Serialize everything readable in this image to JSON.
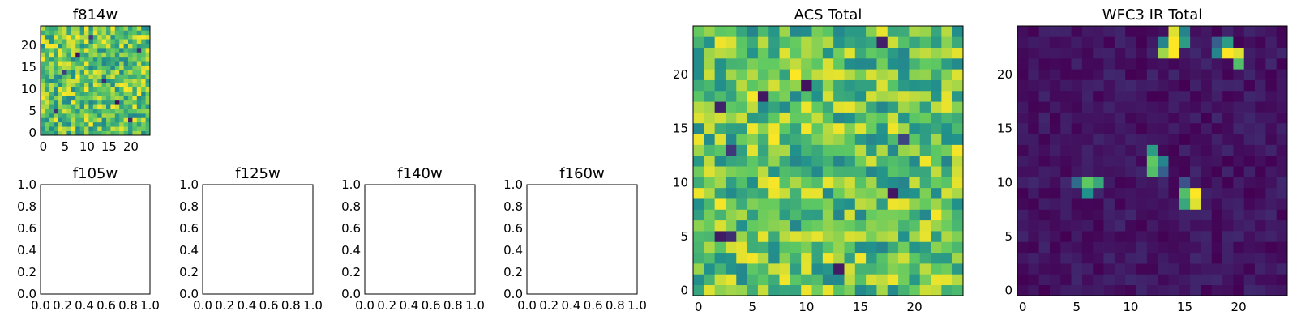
{
  "figure": {
    "background": "#ffffff",
    "colormap_name": "viridis",
    "colormap_stops": [
      "#440154",
      "#3b528b",
      "#21918c",
      "#5ec962",
      "#fde725"
    ]
  },
  "chart_data": [
    {
      "type": "heatmap",
      "title": "f814w",
      "grid_size": 25,
      "xlim": [
        -0.5,
        24.5
      ],
      "ylim": [
        -0.5,
        24.5
      ],
      "xticks": [
        0,
        5,
        10,
        15,
        20
      ],
      "yticks": [
        0,
        5,
        10,
        15,
        20
      ],
      "value_model": "noise",
      "value_range": [
        0.45,
        1.0
      ],
      "seed": 11,
      "low_value_cells": [
        [
          3,
          5
        ],
        [
          11,
          22
        ],
        [
          17,
          7
        ],
        [
          5,
          14
        ],
        [
          20,
          3
        ],
        [
          8,
          18
        ],
        [
          14,
          12
        ],
        [
          22,
          19
        ]
      ]
    },
    {
      "type": "table",
      "title": "f105w",
      "empty": true,
      "xlim": [
        0,
        1
      ],
      "ylim": [
        0,
        1
      ],
      "xticks": [
        "0.0",
        "0.2",
        "0.4",
        "0.6",
        "0.8",
        "1.0"
      ],
      "yticks": [
        "0.0",
        "0.2",
        "0.4",
        "0.6",
        "0.8",
        "1.0"
      ]
    },
    {
      "type": "table",
      "title": "f125w",
      "empty": true,
      "xlim": [
        0,
        1
      ],
      "ylim": [
        0,
        1
      ],
      "xticks": [
        "0.0",
        "0.2",
        "0.4",
        "0.6",
        "0.8",
        "1.0"
      ],
      "yticks": [
        "0.0",
        "0.2",
        "0.4",
        "0.6",
        "0.8",
        "1.0"
      ]
    },
    {
      "type": "table",
      "title": "f140w",
      "empty": true,
      "xlim": [
        0,
        1
      ],
      "ylim": [
        0,
        1
      ],
      "xticks": [
        "0.0",
        "0.2",
        "0.4",
        "0.6",
        "0.8",
        "1.0"
      ],
      "yticks": [
        "0.0",
        "0.2",
        "0.4",
        "0.6",
        "0.8",
        "1.0"
      ]
    },
    {
      "type": "table",
      "title": "f160w",
      "empty": true,
      "xlim": [
        0,
        1
      ],
      "ylim": [
        0,
        1
      ],
      "xticks": [
        "0.0",
        "0.2",
        "0.4",
        "0.6",
        "0.8",
        "1.0"
      ],
      "yticks": [
        "0.0",
        "0.2",
        "0.4",
        "0.6",
        "0.8",
        "1.0"
      ]
    },
    {
      "type": "heatmap",
      "title": "ACS Total",
      "grid_size": 25,
      "xlim": [
        -0.5,
        24.5
      ],
      "ylim": [
        -0.5,
        24.5
      ],
      "xticks": [
        0,
        5,
        10,
        15,
        20
      ],
      "yticks": [
        0,
        5,
        10,
        15,
        20
      ],
      "value_model": "noise",
      "value_range": [
        0.45,
        1.0
      ],
      "seed": 29,
      "low_value_cells": [
        [
          10,
          19
        ],
        [
          2,
          17
        ],
        [
          3,
          13
        ],
        [
          19,
          14
        ],
        [
          13,
          2
        ],
        [
          6,
          18
        ],
        [
          17,
          23
        ],
        [
          3,
          5
        ],
        [
          2,
          5
        ],
        [
          18,
          9
        ]
      ]
    },
    {
      "type": "heatmap",
      "title": "WFC3 IR Total",
      "grid_size": 25,
      "xlim": [
        -0.5,
        24.5
      ],
      "ylim": [
        -0.5,
        24.5
      ],
      "xticks": [
        0,
        5,
        10,
        15,
        20
      ],
      "yticks": [
        0,
        5,
        10,
        15,
        20
      ],
      "value_model": "background_with_sources",
      "background_range": [
        0.0,
        0.12
      ],
      "seed": 47,
      "sources": [
        {
          "x": 14,
          "y": 22,
          "value": 1.0
        },
        {
          "x": 14,
          "y": 23,
          "value": 1.0
        },
        {
          "x": 14,
          "y": 24,
          "value": 0.95
        },
        {
          "x": 13,
          "y": 22,
          "value": 0.85
        },
        {
          "x": 15,
          "y": 23,
          "value": 0.55
        },
        {
          "x": 15,
          "y": 24,
          "value": 0.45
        },
        {
          "x": 13,
          "y": 23,
          "value": 0.45
        },
        {
          "x": 19,
          "y": 22,
          "value": 1.0
        },
        {
          "x": 20,
          "y": 22,
          "value": 0.95
        },
        {
          "x": 19,
          "y": 23,
          "value": 0.55
        },
        {
          "x": 18,
          "y": 22,
          "value": 0.45
        },
        {
          "x": 20,
          "y": 21,
          "value": 0.7
        },
        {
          "x": 18,
          "y": 23,
          "value": 0.3
        },
        {
          "x": 12,
          "y": 12,
          "value": 0.75
        },
        {
          "x": 12,
          "y": 11,
          "value": 0.7
        },
        {
          "x": 12,
          "y": 13,
          "value": 0.55
        },
        {
          "x": 13,
          "y": 12,
          "value": 0.45
        },
        {
          "x": 13,
          "y": 11,
          "value": 0.3
        },
        {
          "x": 6,
          "y": 10,
          "value": 0.75
        },
        {
          "x": 7,
          "y": 10,
          "value": 0.6
        },
        {
          "x": 6,
          "y": 9,
          "value": 0.5
        },
        {
          "x": 5,
          "y": 10,
          "value": 0.35
        },
        {
          "x": 16,
          "y": 9,
          "value": 1.0
        },
        {
          "x": 16,
          "y": 8,
          "value": 0.95
        },
        {
          "x": 15,
          "y": 9,
          "value": 0.7
        },
        {
          "x": 15,
          "y": 8,
          "value": 0.6
        },
        {
          "x": 15,
          "y": 10,
          "value": 0.25
        }
      ]
    }
  ]
}
